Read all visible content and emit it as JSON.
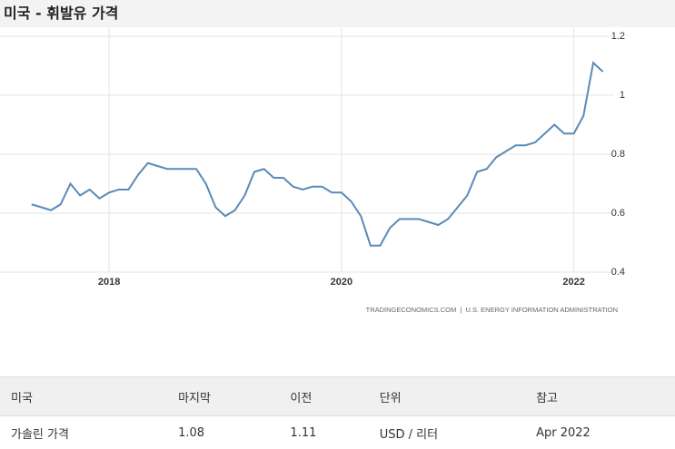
{
  "chart_data": {
    "type": "line",
    "title": "미국 - 휘발유 가격",
    "source": "TRADINGECONOMICS.COM  |  U.S. ENERGY INFORMATION ADMINISTRATION",
    "x": [
      2017.333,
      2017.417,
      2017.5,
      2017.583,
      2017.667,
      2017.75,
      2017.833,
      2017.917,
      2018,
      2018.083,
      2018.167,
      2018.25,
      2018.333,
      2018.417,
      2018.5,
      2018.583,
      2018.667,
      2018.75,
      2018.833,
      2018.917,
      2019,
      2019.083,
      2019.167,
      2019.25,
      2019.333,
      2019.417,
      2019.5,
      2019.583,
      2019.667,
      2019.75,
      2019.833,
      2019.917,
      2020,
      2020.083,
      2020.167,
      2020.25,
      2020.333,
      2020.417,
      2020.5,
      2020.583,
      2020.667,
      2020.75,
      2020.833,
      2020.917,
      2021,
      2021.083,
      2021.167,
      2021.25,
      2021.333,
      2021.417,
      2021.5,
      2021.583,
      2021.667,
      2021.75,
      2021.833,
      2021.917,
      2022,
      2022.083,
      2022.167,
      2022.25
    ],
    "series": [
      {
        "name": "가솔린 가격",
        "color": "#5a8ab8",
        "values": [
          0.63,
          0.62,
          0.61,
          0.63,
          0.7,
          0.66,
          0.68,
          0.65,
          0.67,
          0.68,
          0.68,
          0.73,
          0.77,
          0.76,
          0.75,
          0.75,
          0.75,
          0.75,
          0.7,
          0.62,
          0.59,
          0.61,
          0.66,
          0.74,
          0.75,
          0.72,
          0.72,
          0.69,
          0.68,
          0.69,
          0.69,
          0.67,
          0.67,
          0.64,
          0.59,
          0.49,
          0.49,
          0.55,
          0.58,
          0.58,
          0.58,
          0.57,
          0.56,
          0.58,
          0.62,
          0.66,
          0.74,
          0.75,
          0.79,
          0.81,
          0.83,
          0.83,
          0.84,
          0.87,
          0.9,
          0.87,
          0.87,
          0.93,
          1.11,
          1.08
        ]
      }
    ],
    "xlim": [
      2017.1,
      2022.3
    ],
    "xticks": [
      2018,
      2020,
      2022
    ],
    "ylim": [
      0.4,
      1.2
    ],
    "yticks": [
      0.4,
      0.6,
      0.8,
      1,
      1.2
    ],
    "grid": true
  },
  "table": {
    "headers": [
      "미국",
      "마지막",
      "이전",
      "단위",
      "참고"
    ],
    "rows": [
      [
        "가솔린 가격",
        "1.08",
        "1.11",
        "USD / 리터",
        "Apr 2022"
      ]
    ]
  }
}
